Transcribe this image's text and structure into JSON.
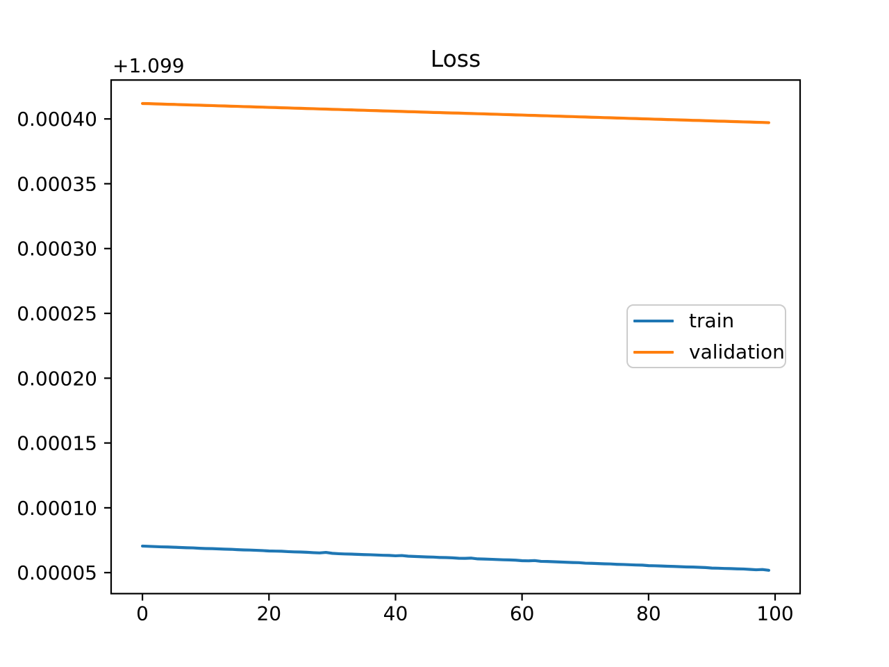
{
  "chart_data": {
    "type": "line",
    "title": "Loss",
    "xlabel": "",
    "ylabel": "",
    "y_offset_label": "+1.099",
    "y_offset": 1.099,
    "grid": false,
    "legend_position": "center right",
    "xlim": [
      -4.95,
      103.95
    ],
    "ylim_residual": [
      3.38e-05,
      0.00043
    ],
    "x_ticks": [
      0,
      20,
      40,
      60,
      80,
      100
    ],
    "y_ticks_residual": [
      5e-05,
      0.0001,
      0.00015,
      0.0002,
      0.00025,
      0.0003,
      0.00035,
      0.0004
    ],
    "y_tick_labels": [
      "0.00005",
      "0.00010",
      "0.00015",
      "0.00020",
      "0.00025",
      "0.00030",
      "0.00035",
      "0.00040"
    ],
    "x": [
      0,
      1,
      2,
      3,
      4,
      5,
      6,
      7,
      8,
      9,
      10,
      11,
      12,
      13,
      14,
      15,
      16,
      17,
      18,
      19,
      20,
      21,
      22,
      23,
      24,
      25,
      26,
      27,
      28,
      29,
      30,
      31,
      32,
      33,
      34,
      35,
      36,
      37,
      38,
      39,
      40,
      41,
      42,
      43,
      44,
      45,
      46,
      47,
      48,
      49,
      50,
      51,
      52,
      53,
      54,
      55,
      56,
      57,
      58,
      59,
      60,
      61,
      62,
      63,
      64,
      65,
      66,
      67,
      68,
      69,
      70,
      71,
      72,
      73,
      74,
      75,
      76,
      77,
      78,
      79,
      80,
      81,
      82,
      83,
      84,
      85,
      86,
      87,
      88,
      89,
      90,
      91,
      92,
      93,
      94,
      95,
      96,
      97,
      98,
      99
    ],
    "series": [
      {
        "name": "train",
        "color": "#1f77b4",
        "values": [
          1.0990705,
          1.0990703,
          1.0990701,
          1.0990699,
          1.0990698,
          1.0990696,
          1.0990694,
          1.0990692,
          1.0990691,
          1.0990688,
          1.0990686,
          1.0990685,
          1.0990683,
          1.0990681,
          1.099068,
          1.0990677,
          1.0990675,
          1.0990674,
          1.0990672,
          1.099067,
          1.0990667,
          1.0990666,
          1.0990665,
          1.0990662,
          1.099066,
          1.0990659,
          1.0990657,
          1.0990654,
          1.0990652,
          1.0990656,
          1.0990649,
          1.0990646,
          1.0990644,
          1.0990643,
          1.0990641,
          1.0990639,
          1.0990638,
          1.0990636,
          1.0990634,
          1.0990633,
          1.099063,
          1.0990632,
          1.0990627,
          1.0990625,
          1.0990623,
          1.0990621,
          1.099062,
          1.0990617,
          1.0990616,
          1.0990614,
          1.0990611,
          1.099061,
          1.0990612,
          1.0990606,
          1.0990605,
          1.0990603,
          1.0990601,
          1.0990599,
          1.0990598,
          1.0990596,
          1.0990592,
          1.0990591,
          1.0990593,
          1.0990587,
          1.0990586,
          1.0990584,
          1.0990582,
          1.099058,
          1.0990578,
          1.0990577,
          1.0990573,
          1.0990572,
          1.099057,
          1.0990568,
          1.0990567,
          1.0990564,
          1.0990563,
          1.0990561,
          1.0990559,
          1.0990558,
          1.0990554,
          1.0990553,
          1.0990551,
          1.0990549,
          1.0990548,
          1.0990546,
          1.0990544,
          1.0990543,
          1.0990541,
          1.0990539,
          1.0990535,
          1.0990534,
          1.0990532,
          1.0990531,
          1.0990529,
          1.0990528,
          1.0990525,
          1.0990522,
          1.0990524,
          1.0990518
        ]
      },
      {
        "name": "validation",
        "color": "#ff7f0e",
        "values": [
          1.0994119,
          1.0994118,
          1.0994116,
          1.0994115,
          1.0994113,
          1.0994112,
          1.099411,
          1.0994109,
          1.0994107,
          1.0994106,
          1.0994104,
          1.0994103,
          1.0994101,
          1.09941,
          1.0994098,
          1.0994097,
          1.0994095,
          1.0994094,
          1.0994092,
          1.0994091,
          1.0994089,
          1.0994088,
          1.0994086,
          1.0994085,
          1.0994083,
          1.0994082,
          1.099408,
          1.0994079,
          1.0994077,
          1.0994076,
          1.0994074,
          1.0994073,
          1.0994071,
          1.099407,
          1.0994068,
          1.0994067,
          1.0994065,
          1.0994064,
          1.0994062,
          1.0994061,
          1.0994059,
          1.0994058,
          1.0994056,
          1.0994055,
          1.0994053,
          1.0994052,
          1.099405,
          1.0994049,
          1.0994047,
          1.0994046,
          1.0994045,
          1.0994043,
          1.0994042,
          1.099404,
          1.0994039,
          1.0994037,
          1.0994036,
          1.0994034,
          1.0994033,
          1.0994031,
          1.099403,
          1.0994028,
          1.0994027,
          1.0994025,
          1.0994024,
          1.0994022,
          1.0994021,
          1.0994019,
          1.0994018,
          1.0994016,
          1.0994015,
          1.0994013,
          1.0994012,
          1.099401,
          1.0994009,
          1.0994007,
          1.0994006,
          1.0994004,
          1.0994003,
          1.0994001,
          1.0994,
          1.0993998,
          1.0993997,
          1.0993995,
          1.0993994,
          1.0993992,
          1.0993991,
          1.0993989,
          1.0993988,
          1.0993986,
          1.0993985,
          1.0993983,
          1.0993982,
          1.099398,
          1.0993979,
          1.0993977,
          1.0993976,
          1.0993974,
          1.0993973,
          1.0993971
        ]
      }
    ]
  },
  "colors": {
    "spine": "#000000",
    "tick": "#000000",
    "text": "#000000",
    "legend_border": "#cccccc",
    "background": "#ffffff"
  }
}
